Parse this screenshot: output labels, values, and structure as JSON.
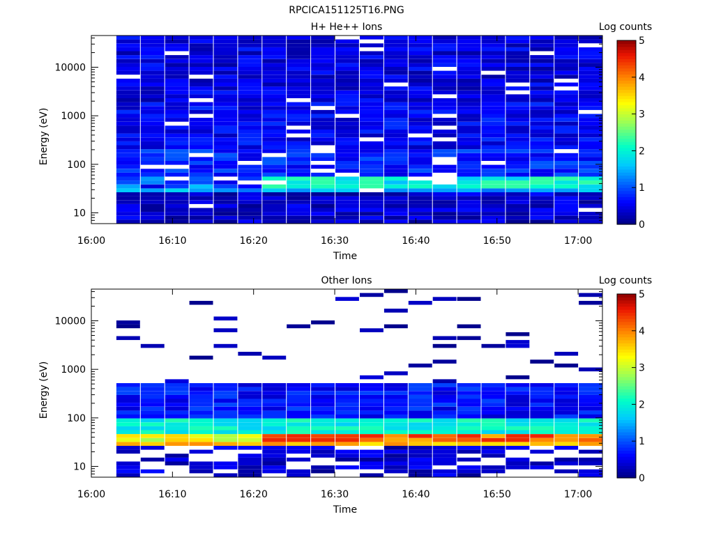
{
  "figure_title": "RPCICA151125T16.PNG",
  "chart_data": [
    {
      "type": "heatmap",
      "title": "H+ He++ Ions",
      "xlabel": "Time",
      "ylabel": "Energy (eV)",
      "x_scale": "time",
      "y_scale": "log",
      "xlim": [
        "16:00",
        "17:03"
      ],
      "ylim": [
        6,
        45000
      ],
      "x_ticks": [
        "16:00",
        "16:10",
        "16:20",
        "16:30",
        "16:40",
        "16:50",
        "17:00"
      ],
      "y_ticks": [
        "10",
        "100",
        "1000",
        "10000"
      ],
      "colorbar": {
        "label": "Log counts",
        "range": [
          0,
          5
        ],
        "ticks": [
          "0",
          "1",
          "2",
          "3",
          "4",
          "5"
        ]
      },
      "time_bins": [
        "16:03",
        "16:06",
        "16:09",
        "16:12",
        "16:15",
        "16:18",
        "16:21",
        "16:24",
        "16:27",
        "16:30",
        "16:33",
        "16:36",
        "16:39",
        "16:42",
        "16:45",
        "16:48",
        "16:51",
        "16:54",
        "16:57",
        "17:00",
        "17:03"
      ],
      "energy_bands": [
        {
          "energy": [
            2000,
            45000
          ],
          "value": 0.4
        },
        {
          "energy": [
            200,
            2000
          ],
          "value": 0.5
        },
        {
          "energy": [
            60,
            200
          ],
          "value": 0.7
        },
        {
          "energy": [
            25,
            60
          ],
          "value": 1.4
        },
        {
          "energy": [
            6,
            25
          ],
          "value": 0.3
        }
      ],
      "peak": {
        "energy": [
          30,
          60
        ],
        "max_value": 2.3
      }
    },
    {
      "type": "heatmap",
      "title": "Other Ions",
      "xlabel": "Time",
      "ylabel": "Energy (eV)",
      "x_scale": "time",
      "y_scale": "log",
      "xlim": [
        "16:00",
        "17:03"
      ],
      "ylim": [
        6,
        45000
      ],
      "x_ticks": [
        "16:00",
        "16:10",
        "16:20",
        "16:30",
        "16:40",
        "16:50",
        "17:00"
      ],
      "y_ticks": [
        "10",
        "100",
        "1000",
        "10000"
      ],
      "colorbar": {
        "label": "Log counts",
        "range": [
          0,
          5
        ],
        "ticks": [
          "0",
          "1",
          "2",
          "3",
          "4",
          "5"
        ]
      },
      "time_bins": [
        "16:03",
        "16:06",
        "16:09",
        "16:12",
        "16:15",
        "16:18",
        "16:21",
        "16:24",
        "16:27",
        "16:30",
        "16:33",
        "16:36",
        "16:39",
        "16:42",
        "16:45",
        "16:48",
        "16:51",
        "16:54",
        "16:57",
        "17:00",
        "17:03"
      ],
      "energy_bands": [
        {
          "energy": [
            500,
            45000
          ],
          "value": 0.1
        },
        {
          "energy": [
            100,
            500
          ],
          "value": 0.6
        },
        {
          "energy": [
            45,
            100
          ],
          "value": 1.9
        },
        {
          "energy": [
            25,
            45
          ],
          "value": 3.6
        },
        {
          "energy": [
            6,
            25
          ],
          "value": 0.3
        }
      ],
      "peak": {
        "energy": [
          30,
          45
        ],
        "max_value": 4.5
      }
    }
  ]
}
